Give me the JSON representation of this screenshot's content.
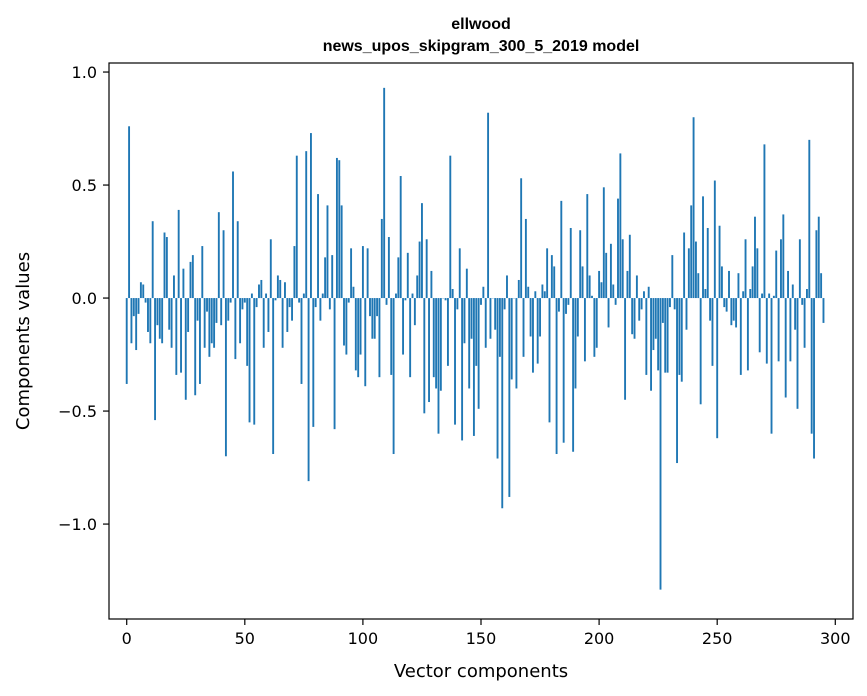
{
  "chart_data": {
    "type": "bar",
    "title": "ellwood",
    "subtitle": "news_upos_skipgram_300_5_2019 model",
    "xlabel": "Vector components",
    "ylabel": "Components values",
    "xlim": [
      -7.5,
      307.5
    ],
    "ylim": [
      -1.42,
      1.04
    ],
    "xticks": [
      0,
      50,
      100,
      150,
      200,
      250,
      300
    ],
    "xtick_labels": [
      "0",
      "50",
      "100",
      "150",
      "200",
      "250",
      "300"
    ],
    "yticks": [
      -1.0,
      -0.5,
      0.0,
      0.5,
      1.0
    ],
    "ytick_labels": [
      "−1.0",
      "−0.5",
      "0.0",
      "0.5",
      "1.0"
    ],
    "bar_color": "#1f77b4",
    "values": [
      -0.38,
      0.76,
      -0.2,
      -0.08,
      -0.23,
      -0.07,
      0.07,
      0.06,
      -0.02,
      -0.15,
      -0.2,
      0.34,
      -0.54,
      -0.12,
      -0.18,
      -0.2,
      0.29,
      0.27,
      -0.14,
      -0.22,
      0.1,
      -0.34,
      0.39,
      -0.33,
      0.13,
      -0.45,
      -0.15,
      0.16,
      0.19,
      -0.43,
      -0.1,
      -0.38,
      0.23,
      -0.22,
      -0.06,
      -0.26,
      -0.2,
      -0.22,
      -0.11,
      0.38,
      -0.12,
      0.3,
      -0.7,
      -0.1,
      -0.02,
      0.56,
      -0.27,
      0.34,
      -0.2,
      -0.05,
      -0.02,
      -0.3,
      -0.55,
      0.02,
      -0.56,
      -0.04,
      0.06,
      0.08,
      -0.22,
      0.02,
      -0.15,
      0.26,
      -0.69,
      -0.01,
      0.1,
      0.08,
      -0.22,
      0.07,
      -0.15,
      -0.04,
      -0.1,
      0.23,
      0.63,
      -0.02,
      -0.38,
      0.02,
      0.65,
      -0.81,
      0.73,
      -0.57,
      -0.04,
      0.46,
      -0.1,
      0.02,
      0.18,
      0.41,
      -0.05,
      0.19,
      -0.58,
      0.62,
      0.61,
      0.41,
      -0.21,
      -0.25,
      -0.02,
      0.22,
      0.05,
      -0.32,
      -0.35,
      -0.25,
      0.23,
      -0.39,
      0.22,
      -0.08,
      -0.18,
      -0.18,
      -0.08,
      -0.35,
      0.35,
      0.93,
      -0.03,
      0.27,
      -0.34,
      -0.69,
      0.02,
      0.18,
      0.54,
      -0.25,
      -0.01,
      0.2,
      -0.35,
      0.02,
      -0.12,
      0.1,
      0.25,
      0.42,
      -0.51,
      0.26,
      -0.46,
      0.12,
      -0.35,
      -0.4,
      -0.6,
      -0.41,
      0.0,
      -0.01,
      -0.3,
      0.63,
      0.04,
      -0.56,
      -0.05,
      0.22,
      -0.63,
      -0.2,
      0.13,
      -0.4,
      -0.18,
      -0.61,
      -0.3,
      -0.49,
      -0.03,
      0.05,
      -0.22,
      0.82,
      -0.18,
      0.0,
      -0.14,
      -0.71,
      -0.26,
      -0.93,
      -0.05,
      0.1,
      -0.88,
      -0.36,
      0.0,
      -0.4,
      0.08,
      0.53,
      -0.26,
      0.35,
      0.05,
      -0.17,
      -0.33,
      0.03,
      -0.29,
      -0.17,
      0.06,
      0.03,
      0.22,
      -0.55,
      0.19,
      0.14,
      -0.69,
      -0.06,
      0.43,
      -0.64,
      -0.07,
      -0.03,
      0.31,
      -0.68,
      -0.4,
      -0.17,
      0.3,
      0.14,
      -0.28,
      0.46,
      0.1,
      0.01,
      -0.26,
      -0.22,
      0.12,
      0.07,
      0.49,
      0.2,
      -0.13,
      0.24,
      0.06,
      -0.03,
      0.44,
      0.64,
      0.26,
      -0.45,
      0.12,
      0.28,
      -0.16,
      -0.18,
      0.1,
      -0.1,
      -0.05,
      0.03,
      -0.34,
      0.05,
      -0.41,
      -0.23,
      -0.18,
      -0.32,
      -1.29,
      -0.11,
      -0.33,
      -0.33,
      -0.04,
      0.19,
      -0.05,
      -0.73,
      -0.34,
      -0.37,
      0.29,
      -0.14,
      0.22,
      0.41,
      0.8,
      0.25,
      0.11,
      -0.47,
      0.45,
      0.04,
      0.31,
      -0.1,
      -0.3,
      0.52,
      -0.62,
      0.32,
      0.14,
      -0.04,
      -0.06,
      0.12,
      -0.12,
      -0.1,
      -0.13,
      0.11,
      -0.34,
      0.03,
      0.26,
      -0.32,
      0.04,
      0.14,
      0.36,
      0.22,
      -0.24,
      0.02,
      0.68,
      -0.29,
      0.02,
      -0.6,
      0.01,
      0.21,
      -0.28,
      0.26,
      0.37,
      -0.44,
      0.12,
      -0.28,
      0.06,
      -0.14,
      -0.49,
      0.26,
      -0.03,
      -0.22,
      0.04,
      0.7,
      -0.6,
      -0.71,
      0.3,
      0.36,
      0.11,
      -0.11
    ]
  }
}
